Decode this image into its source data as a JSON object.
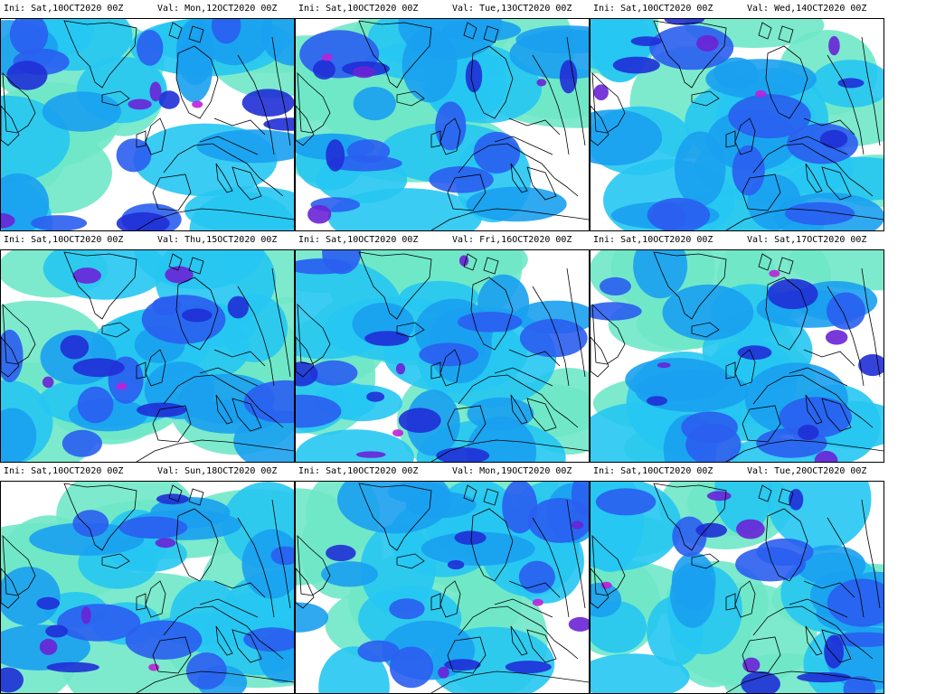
{
  "panels": [
    {
      "ini": "Ini: Sat,10OCT2020 00Z",
      "val": "Val: Mon,12OCT2020 00Z"
    },
    {
      "ini": "Ini: Sat,10OCT2020 00Z",
      "val": "Val: Tue,13OCT2020 00Z"
    },
    {
      "ini": "Ini: Sat,10OCT2020 00Z",
      "val": "Val: Wed,14OCT2020 00Z"
    },
    {
      "ini": "Ini: Sat,10OCT2020 00Z",
      "val": "Val: Thu,15OCT2020 00Z"
    },
    {
      "ini": "Ini: Sat,10OCT2020 00Z",
      "val": "Val: Fri,16OCT2020 00Z"
    },
    {
      "ini": "Ini: Sat,10OCT2020 00Z",
      "val": "Val: Sat,17OCT2020 00Z"
    },
    {
      "ini": "Ini: Sat,10OCT2020 00Z",
      "val": "Val: Sun,18OCT2020 00Z"
    },
    {
      "ini": "Ini: Sat,10OCT2020 00Z",
      "val": "Val: Mon,19OCT2020 00Z"
    },
    {
      "ini": "Ini: Sat,10OCT2020 00Z",
      "val": "Val: Tue,20OCT2020 00Z"
    }
  ],
  "colors": {
    "background": "#ffffff",
    "light": "#6fe8c8",
    "cyan": "#26c6f2",
    "azure": "#1aa0f0",
    "blue": "#2a5ef0",
    "deep": "#1f2fd6",
    "violet": "#6a22d6",
    "magenta": "#c020d8",
    "coast": "#000000"
  }
}
